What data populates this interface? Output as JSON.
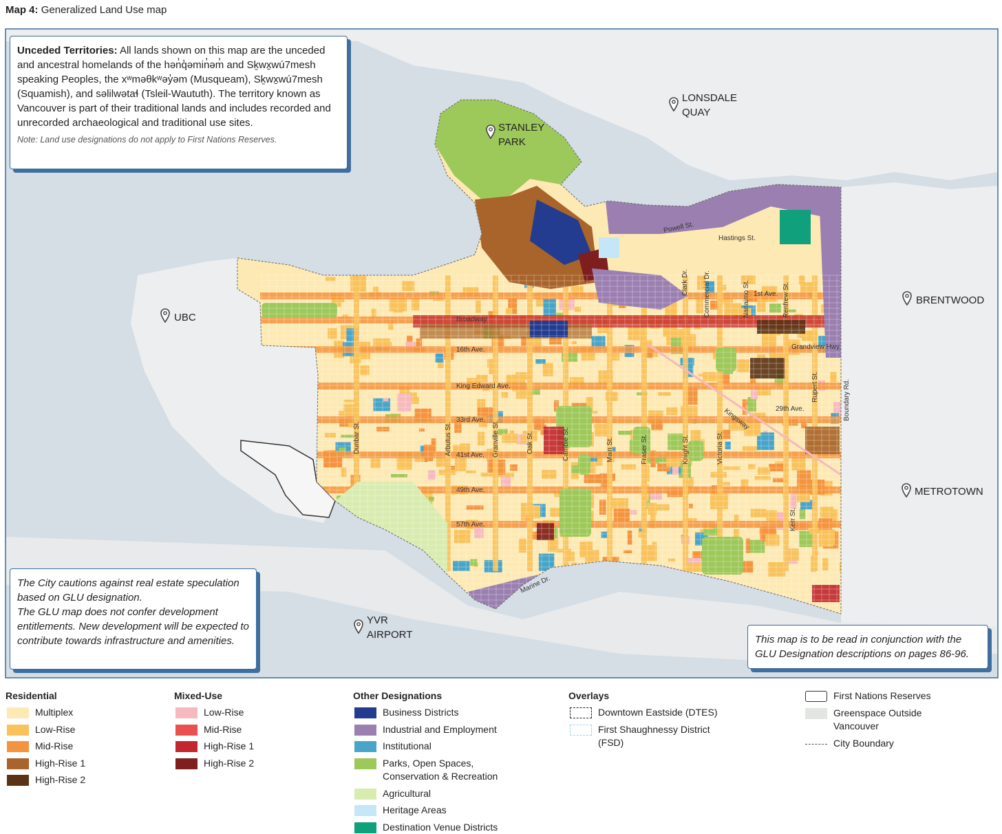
{
  "title": {
    "label": "Map 4:",
    "text": "Generalized Land Use map"
  },
  "unceded": {
    "heading": "Unceded Territories:",
    "text": "All lands shown on this map are the unceded and ancestral homelands of the hən̓q̓əmin̓əm̓ and Sḵwx̱wú7mesh speaking Peoples, the xʷməθkʷəy̓əm (Musqueam), Sḵwx̱wú7mesh (Squamish), and səlilwətaɬ (Tsleil-Waututh). The territory known as Vancouver is part of their traditional lands and includes recorded and unrecorded archaeological and traditional use sites.",
    "note": "Note: Land use designations do not apply to First Nations Reserves."
  },
  "caution": [
    "The City cautions against real estate speculation based on GLU designation.",
    "The GLU map does not confer development entitlements. New development will be expected to contribute towards infrastructure and amenities."
  ],
  "read_note": "This map is to be read in conjunction with the GLU Designation descriptions on pages 86-96.",
  "places": [
    {
      "lines": [
        "STANLEY",
        "PARK"
      ]
    },
    {
      "lines": [
        "LONSDALE",
        "QUAY"
      ]
    },
    {
      "lines": [
        "UBC"
      ]
    },
    {
      "lines": [
        "BRENTWOOD"
      ]
    },
    {
      "lines": [
        "METROTOWN"
      ]
    },
    {
      "lines": [
        "YVR",
        "AIRPORT"
      ]
    }
  ],
  "streets": [
    "Powell St.",
    "Hastings St.",
    "1st Ave.",
    "Broadway",
    "16th Ave.",
    "King Edward Ave.",
    "33rd Ave.",
    "41st Ave.",
    "49th Ave.",
    "57th Ave.",
    "29th Ave.",
    "Grandview Hwy.",
    "Kingsway",
    "Marine Dr.",
    "Dunbar St.",
    "Arbutus St.",
    "Granville St.",
    "Oak St.",
    "Cambie St.",
    "Main St.",
    "Fraser St.",
    "Knight St.",
    "Victoria St.",
    "Clark Dr.",
    "Commercial Dr.",
    "Nanaimo St.",
    "Renfrew St.",
    "Rupert St.",
    "Boundary Rd.",
    "Kerr St."
  ],
  "legend": [
    {
      "heading": "Residential",
      "items": [
        {
          "name": "Multiplex",
          "color": "#fde9b3"
        },
        {
          "name": "Low-Rise",
          "color": "#f9c25a"
        },
        {
          "name": "Mid-Rise",
          "color": "#f4943e"
        },
        {
          "name": "High-Rise 1",
          "color": "#a8642a"
        },
        {
          "name": "High-Rise 2",
          "color": "#5a3316"
        }
      ]
    },
    {
      "heading": "Mixed-Use",
      "items": [
        {
          "name": "Low-Rise",
          "color": "#f6b9be"
        },
        {
          "name": "Mid-Rise",
          "color": "#e8514f"
        },
        {
          "name": "High-Rise 1",
          "color": "#c1272d"
        },
        {
          "name": "High-Rise 2",
          "color": "#7e1e1e"
        }
      ]
    },
    {
      "heading": "Other Designations",
      "items": [
        {
          "name": "Business Districts",
          "color": "#233c8f"
        },
        {
          "name": "Industrial and Employment",
          "color": "#9a7fb0"
        },
        {
          "name": "Institutional",
          "color": "#48a5c9"
        },
        {
          "name": "Parks, Open Spaces, Conservation & Recreation",
          "color": "#9dc85a"
        },
        {
          "name": "Agricultural",
          "color": "#d9ecb0"
        },
        {
          "name": "Heritage Areas",
          "color": "#c5e6f7"
        },
        {
          "name": "Destination Venue Districts",
          "color": "#10a07c"
        }
      ]
    },
    {
      "heading": "Overlays",
      "items": [
        {
          "name": "Downtown Eastside (DTES)",
          "color": "#222222",
          "style": "dashed-box"
        },
        {
          "name": "First Shaughnessy District (FSD)",
          "color": "#9fd3ee",
          "style": "dashed-box"
        }
      ]
    },
    {
      "items": [
        {
          "name": "First Nations Reserves",
          "color": "#ffffff",
          "style": "outlined-box"
        },
        {
          "name": "Greenspace Outside Vancouver",
          "color": "#e3e5e3"
        },
        {
          "name": "City Boundary",
          "color": "#555555",
          "style": "dashed-line"
        }
      ]
    }
  ]
}
